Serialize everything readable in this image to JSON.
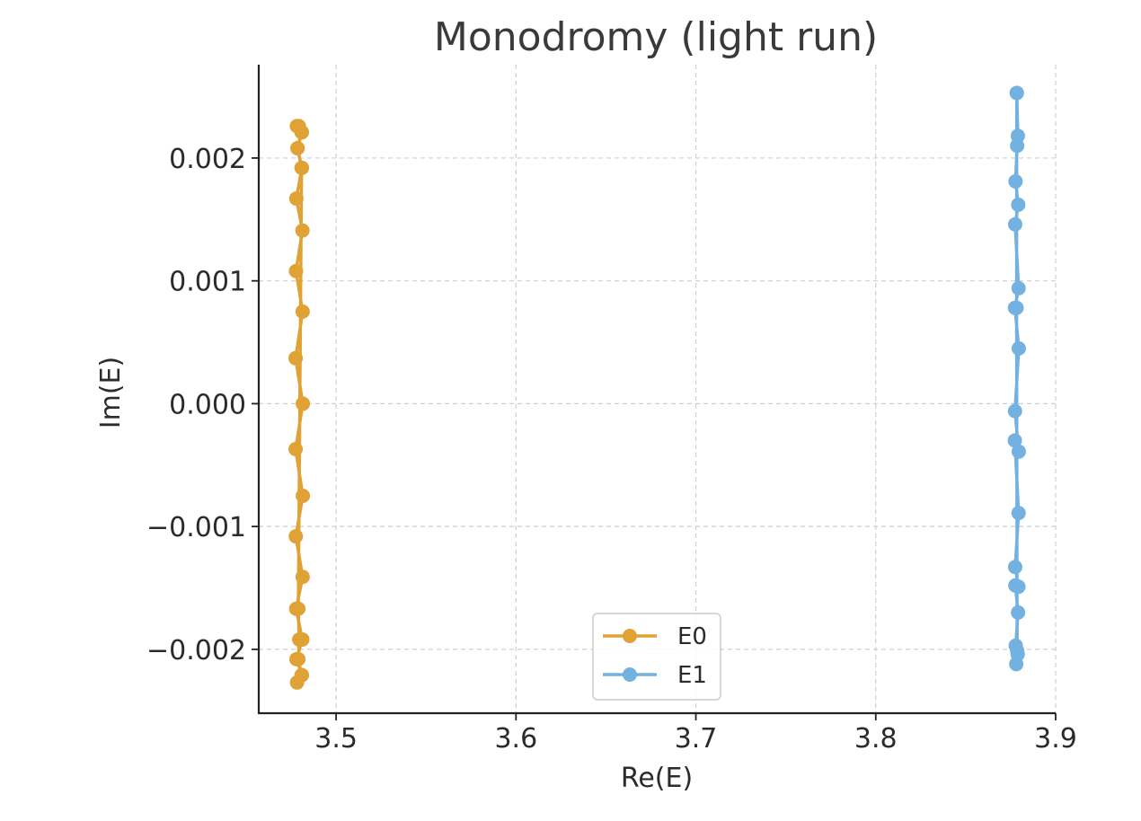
{
  "chart_data": {
    "type": "line",
    "title": "Monodromy (light run)",
    "xlabel": "Re(E)",
    "ylabel": "Im(E)",
    "xlim": [
      3.457,
      3.9
    ],
    "ylim": [
      -0.00252,
      0.00276
    ],
    "xticks": [
      3.5,
      3.6,
      3.7,
      3.8,
      3.9
    ],
    "xtick_labels": [
      "3.5",
      "3.6",
      "3.7",
      "3.8",
      "3.9"
    ],
    "yticks": [
      0.002,
      0.001,
      0.0,
      -0.001,
      -0.002
    ],
    "ytick_labels": [
      "0.002",
      "0.001",
      "0.000",
      "−0.001",
      "−0.002"
    ],
    "grid": true,
    "legend_position": "bottom-center",
    "series": [
      {
        "name": "E0",
        "color": "#E0A234",
        "x": [
          3.4793,
          3.4808,
          3.4785,
          3.481,
          3.4779,
          3.4813,
          3.4777,
          3.4814,
          3.4775,
          3.4815,
          3.4775,
          3.4815,
          3.4776,
          3.4814,
          3.4778,
          3.4812,
          3.478,
          3.481,
          3.4783,
          3.4808,
          3.479,
          3.4795,
          3.479,
          3.4808,
          3.4786,
          3.481,
          3.4782
        ],
        "y": [
          0.00226,
          0.00221,
          0.00208,
          0.00192,
          0.00167,
          0.00141,
          0.00108,
          0.00075,
          0.00037,
          0.0,
          -0.00037,
          -0.00075,
          -0.00108,
          -0.00141,
          -0.00167,
          -0.00192,
          -0.00208,
          -0.00221,
          -0.00227,
          -0.00221,
          -0.00208,
          -0.00192,
          -0.00167,
          0.00192,
          0.00208,
          0.00221,
          0.00226
        ]
      },
      {
        "name": "E1",
        "color": "#73B2E0",
        "x": [
          3.8784,
          3.879,
          3.8786,
          3.8777,
          3.8792,
          3.8775,
          3.8794,
          3.8774,
          3.8795,
          3.8774,
          3.8795,
          3.8773,
          3.8794,
          3.8775,
          3.8793,
          3.8776,
          3.8791,
          3.8778,
          3.8789,
          3.8781,
          3.8786,
          3.8783,
          3.8784
        ],
        "y": [
          0.00253,
          0.00218,
          0.0021,
          0.00181,
          0.00162,
          0.00146,
          0.00094,
          0.00078,
          0.00045,
          -6e-05,
          -0.00039,
          -0.0003,
          -0.00089,
          -0.00133,
          -0.00149,
          -0.00148,
          -0.0017,
          -0.00197,
          -0.00204,
          -0.00212,
          -0.00201,
          0.00078,
          0.00253
        ]
      }
    ]
  }
}
